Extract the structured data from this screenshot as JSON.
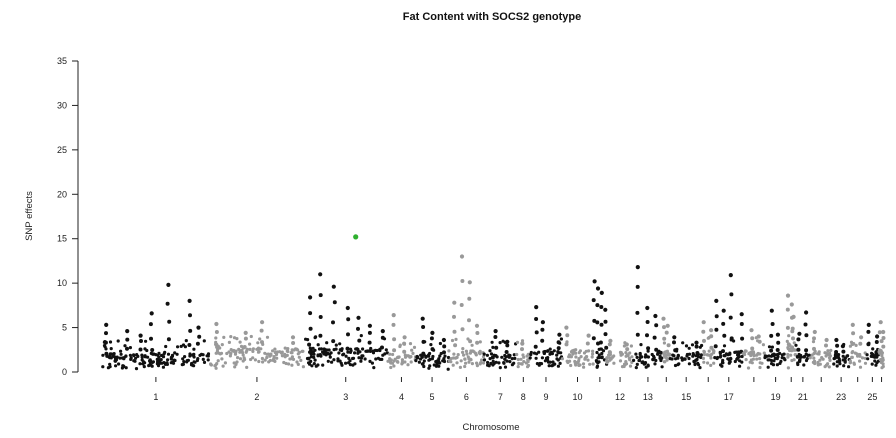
{
  "chart_data": {
    "type": "scatter",
    "title": "Fat Content with SOCS2 genotype",
    "xlabel": "Chromosome",
    "ylabel": "SNP effects",
    "ylim": [
      0,
      35
    ],
    "yticks": [
      0,
      5,
      10,
      15,
      20,
      25,
      30,
      35
    ],
    "grid": false,
    "colors": {
      "odd_chromosomes": "#111111",
      "even_chromosomes": "#999999",
      "highlight": "#2fb02f"
    },
    "chromosomes": [
      {
        "name": "1",
        "label": "1",
        "length": 1.76,
        "base": 2.0,
        "peaks": [
          5.3,
          4.6,
          4.1,
          6.6,
          9.8,
          8.0,
          5.0
        ]
      },
      {
        "name": "2",
        "label": "2",
        "length": 1.54,
        "base": 2.6,
        "peaks": [
          5.4,
          4.4,
          5.6,
          3.9
        ]
      },
      {
        "name": "3",
        "label": "3",
        "length": 1.36,
        "base": 2.5,
        "peaks": [
          8.4,
          11.0,
          9.6,
          7.2,
          6.1,
          5.2,
          4.6
        ]
      },
      {
        "name": "4",
        "label": "4",
        "length": 0.46,
        "base": 2.0,
        "peaks": [
          6.4,
          3.9
        ]
      },
      {
        "name": "5",
        "label": "5",
        "length": 0.54,
        "base": 2.0,
        "peaks": [
          6.0,
          4.4,
          3.6
        ]
      },
      {
        "name": "6",
        "label": "6",
        "length": 0.58,
        "base": 2.3,
        "peaks": [
          7.8,
          13.0,
          10.1,
          5.2
        ]
      },
      {
        "name": "7",
        "label": "7",
        "length": 0.53,
        "base": 2.0,
        "peaks": [
          4.6,
          3.4
        ]
      },
      {
        "name": "8",
        "label": "8",
        "length": 0.22,
        "base": 2.0,
        "peaks": [
          3.2
        ]
      },
      {
        "name": "9",
        "label": "9",
        "length": 0.52,
        "base": 2.3,
        "peaks": [
          7.3,
          5.6,
          4.2
        ]
      },
      {
        "name": "10",
        "label": "10",
        "length": 0.51,
        "base": 2.4,
        "peaks": [
          5.0,
          4.1
        ]
      },
      {
        "name": "11",
        "label": "",
        "length": 0.22,
        "base": 2.5,
        "peaks": [
          10.2,
          9.4,
          8.9,
          7.0
        ]
      },
      {
        "name": "12",
        "label": "12",
        "length": 0.44,
        "base": 2.1,
        "peaks": [
          3.5,
          3.1
        ]
      },
      {
        "name": "13",
        "label": "13",
        "length": 0.47,
        "base": 2.1,
        "peaks": [
          11.8,
          7.2,
          6.3
        ]
      },
      {
        "name": "14",
        "label": "",
        "length": 0.13,
        "base": 2.3,
        "peaks": [
          6.0,
          5.2
        ]
      },
      {
        "name": "15",
        "label": "15",
        "length": 0.52,
        "base": 2.0,
        "peaks": [
          3.9,
          3.3
        ]
      },
      {
        "name": "16",
        "label": "",
        "length": 0.2,
        "base": 2.3,
        "peaks": [
          5.6,
          4.7
        ]
      },
      {
        "name": "17",
        "label": "17",
        "length": 0.47,
        "base": 2.2,
        "peaks": [
          8.0,
          6.9,
          10.9,
          6.5
        ]
      },
      {
        "name": "18",
        "label": "",
        "length": 0.35,
        "base": 2.3,
        "peaks": [
          4.7,
          4.0
        ]
      },
      {
        "name": "19",
        "label": "19",
        "length": 0.36,
        "base": 2.0,
        "peaks": [
          6.9,
          4.2
        ]
      },
      {
        "name": "20",
        "label": "",
        "length": 0.15,
        "base": 2.6,
        "peaks": [
          8.6,
          7.6,
          6.2
        ]
      },
      {
        "name": "21",
        "label": "21",
        "length": 0.23,
        "base": 2.0,
        "peaks": [
          4.3,
          6.7
        ]
      },
      {
        "name": "22",
        "label": "",
        "length": 0.37,
        "base": 2.2,
        "peaks": [
          4.5,
          3.6
        ]
      },
      {
        "name": "23",
        "label": "23",
        "length": 0.28,
        "base": 2.0,
        "peaks": [
          3.6,
          2.9
        ]
      },
      {
        "name": "24",
        "label": "",
        "length": 0.26,
        "base": 2.3,
        "peaks": [
          5.3,
          3.9
        ]
      },
      {
        "name": "25",
        "label": "25",
        "length": 0.22,
        "base": 2.0,
        "peaks": [
          5.3,
          4.0
        ]
      },
      {
        "name": "26",
        "label": "",
        "length": 0.08,
        "base": 2.4,
        "peaks": [
          5.6,
          4.5
        ]
      }
    ],
    "highlight_points": [
      {
        "chromosome": "3",
        "position": 0.62,
        "value": 15.2
      }
    ]
  }
}
